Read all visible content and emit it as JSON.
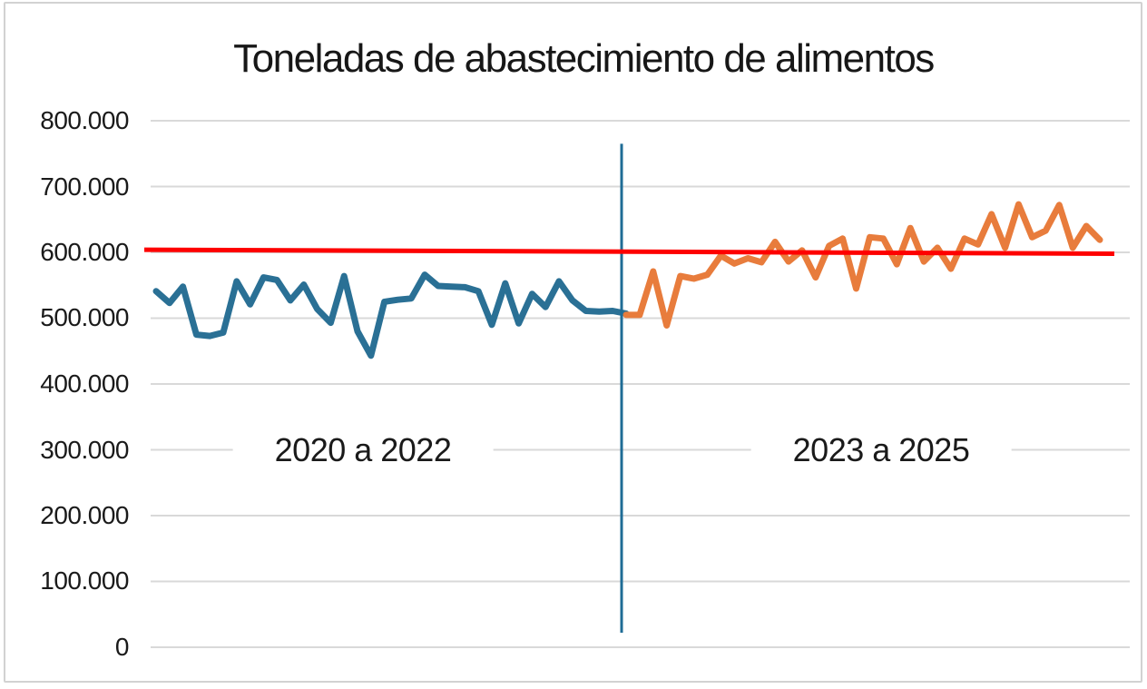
{
  "window": {
    "background_color": "#ffffff",
    "border_color": "#d2d2d2"
  },
  "chart_data": {
    "type": "line",
    "title": "Toneladas de abastecimiento de alimentos",
    "xlabel": "",
    "ylabel": "",
    "ylim": [
      0,
      800000
    ],
    "ytick_interval": 100000,
    "ytick_labels": [
      "800.000",
      "700.000",
      "600.000",
      "500.000",
      "400.000",
      "300.000",
      "200.000",
      "100.000",
      "0"
    ],
    "grid": "horizontal",
    "legend": "none",
    "number_format": "thousands with dot separator (es)",
    "period_labels": [
      {
        "label": "2020 a 2022"
      },
      {
        "label": "2023 a 2025"
      }
    ],
    "series": [
      {
        "name": "2020 a 2022",
        "color": "#2a7095",
        "values": [
          541000,
          523000,
          548000,
          475000,
          473000,
          478000,
          556000,
          521000,
          562000,
          558000,
          527000,
          551000,
          514000,
          493000,
          564000,
          480000,
          443000,
          525000,
          528000,
          530000,
          566000,
          549000,
          548000,
          547000,
          541000,
          490000,
          553000,
          492000,
          537000,
          517000,
          556000,
          527000,
          511000,
          510000,
          511000,
          507000
        ]
      },
      {
        "name": "2023 a 2025",
        "color": "#e87c3c",
        "values": [
          505000,
          505000,
          571000,
          489000,
          564000,
          560000,
          566000,
          595000,
          583000,
          591000,
          585000,
          616000,
          586000,
          603000,
          562000,
          610000,
          621000,
          545000,
          623000,
          621000,
          582000,
          637000,
          586000,
          607000,
          575000,
          621000,
          612000,
          658000,
          607000,
          673000,
          623000,
          633000,
          672000,
          607000,
          640000,
          619000
        ]
      }
    ],
    "annotations": {
      "trend_line": {
        "description": "red horizontal trend line near 600.000",
        "color": "#fe0000",
        "start_value": 604000,
        "end_value": 598000
      },
      "period_divider": {
        "description": "vertical line separating the two periods",
        "color": "#1f6c96",
        "orientation": "vertical",
        "top_value": 765000,
        "bottom_value": 22000
      }
    },
    "colors": {
      "gridline": "#d9d9d9",
      "axis_text": "#1a1a1a",
      "title_text": "#171717"
    }
  }
}
